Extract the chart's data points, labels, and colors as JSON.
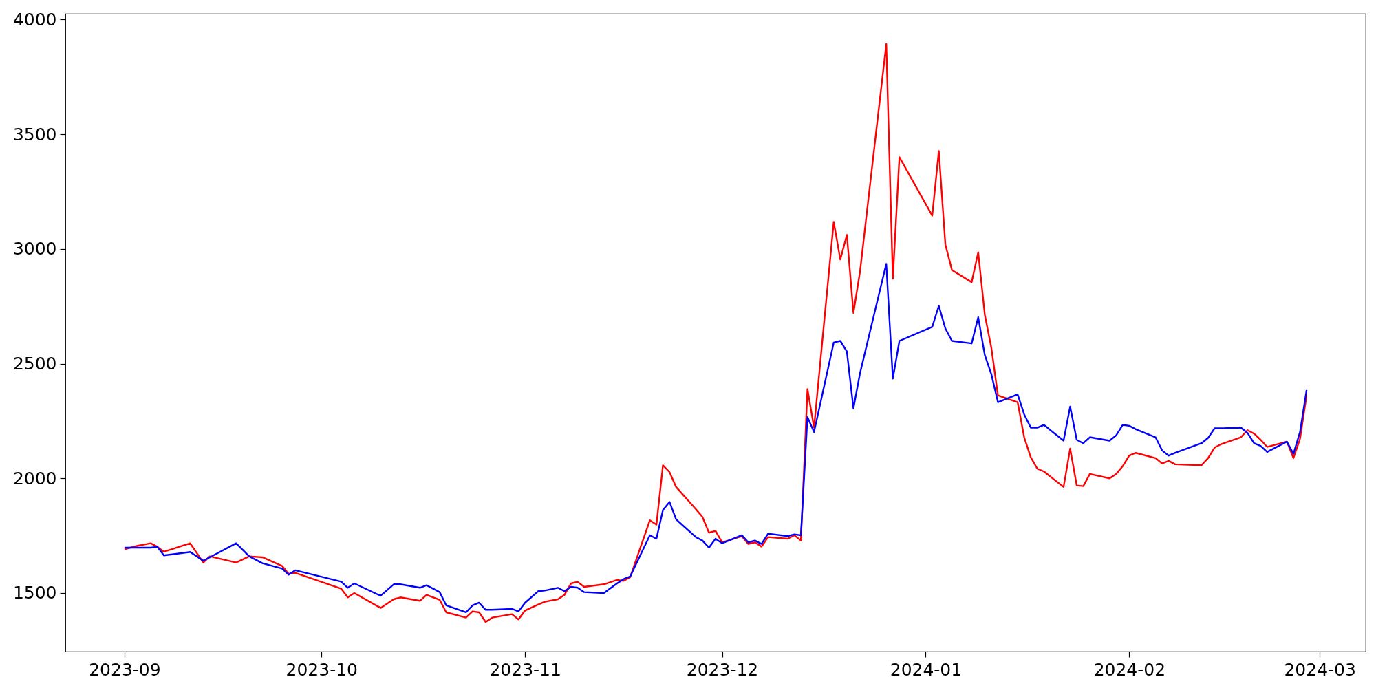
{
  "chart_data": {
    "type": "line",
    "x": [
      "2023-09-01",
      "2023-09-03",
      "2023-09-05",
      "2023-09-06",
      "2023-09-07",
      "2023-09-11",
      "2023-09-13",
      "2023-09-14",
      "2023-09-18",
      "2023-09-20",
      "2023-09-22",
      "2023-09-25",
      "2023-09-26",
      "2023-09-27",
      "2023-10-04",
      "2023-10-05",
      "2023-10-06",
      "2023-10-10",
      "2023-10-12",
      "2023-10-13",
      "2023-10-16",
      "2023-10-17",
      "2023-10-19",
      "2023-10-20",
      "2023-10-23",
      "2023-10-24",
      "2023-10-25",
      "2023-10-26",
      "2023-10-27",
      "2023-10-30",
      "2023-10-31",
      "2023-11-01",
      "2023-11-03",
      "2023-11-04",
      "2023-11-06",
      "2023-11-07",
      "2023-11-08",
      "2023-11-09",
      "2023-11-10",
      "2023-11-13",
      "2023-11-15",
      "2023-11-16",
      "2023-11-17",
      "2023-11-20",
      "2023-11-21",
      "2023-11-22",
      "2023-11-23",
      "2023-11-24",
      "2023-11-27",
      "2023-11-28",
      "2023-11-29",
      "2023-11-30",
      "2023-12-01",
      "2023-12-04",
      "2023-12-05",
      "2023-12-06",
      "2023-12-07",
      "2023-12-08",
      "2023-12-11",
      "2023-12-12",
      "2023-12-13",
      "2023-12-14",
      "2023-12-15",
      "2023-12-18",
      "2023-12-19",
      "2023-12-20",
      "2023-12-21",
      "2023-12-22",
      "2023-12-26",
      "2023-12-27",
      "2023-12-28",
      "2024-01-02",
      "2024-01-03",
      "2024-01-04",
      "2024-01-05",
      "2024-01-08",
      "2024-01-09",
      "2024-01-10",
      "2024-01-11",
      "2024-01-12",
      "2024-01-15",
      "2024-01-16",
      "2024-01-17",
      "2024-01-18",
      "2024-01-19",
      "2024-01-22",
      "2024-01-23",
      "2024-01-24",
      "2024-01-25",
      "2024-01-26",
      "2024-01-29",
      "2024-01-30",
      "2024-01-31",
      "2024-02-01",
      "2024-02-02",
      "2024-02-05",
      "2024-02-06",
      "2024-02-07",
      "2024-02-08",
      "2024-02-12",
      "2024-02-13",
      "2024-02-14",
      "2024-02-15",
      "2024-02-18",
      "2024-02-19",
      "2024-02-20",
      "2024-02-21",
      "2024-02-22",
      "2024-02-25",
      "2024-02-26",
      "2024-02-27",
      "2024-02-28"
    ],
    "series": [
      {
        "color": "#ff0000",
        "values": [
          1691,
          1706,
          1717,
          1702,
          1680,
          1717,
          1633,
          1660,
          1633,
          1660,
          1656,
          1618,
          1584,
          1588,
          1519,
          1481,
          1500,
          1435,
          1473,
          1481,
          1466,
          1492,
          1470,
          1416,
          1393,
          1420,
          1416,
          1374,
          1393,
          1408,
          1385,
          1424,
          1450,
          1462,
          1473,
          1492,
          1542,
          1549,
          1527,
          1538,
          1557,
          1553,
          1569,
          1817,
          1798,
          2057,
          2027,
          1962,
          1866,
          1832,
          1763,
          1771,
          1721,
          1748,
          1714,
          1721,
          1702,
          1744,
          1737,
          1752,
          1729,
          2389,
          2221,
          3118,
          2954,
          3061,
          2721,
          2901,
          3893,
          2870,
          3400,
          3145,
          3427,
          3019,
          2908,
          2855,
          2985,
          2714,
          2569,
          2362,
          2332,
          2179,
          2092,
          2042,
          2030,
          1962,
          2130,
          1969,
          1966,
          2019,
          2000,
          2019,
          2053,
          2099,
          2111,
          2088,
          2065,
          2076,
          2061,
          2057,
          2088,
          2134,
          2149,
          2179,
          2210,
          2195,
          2168,
          2137,
          2160,
          2088,
          2172,
          2362
        ]
      },
      {
        "color": "#0000ff",
        "values": [
          1698,
          1698,
          1698,
          1702,
          1664,
          1679,
          1641,
          1656,
          1717,
          1660,
          1630,
          1607,
          1580,
          1599,
          1550,
          1523,
          1542,
          1488,
          1538,
          1538,
          1523,
          1534,
          1504,
          1446,
          1416,
          1446,
          1458,
          1427,
          1427,
          1431,
          1420,
          1458,
          1508,
          1511,
          1523,
          1508,
          1527,
          1523,
          1504,
          1500,
          1542,
          1561,
          1572,
          1752,
          1737,
          1862,
          1897,
          1821,
          1744,
          1729,
          1698,
          1737,
          1717,
          1752,
          1721,
          1729,
          1714,
          1759,
          1748,
          1756,
          1752,
          2267,
          2202,
          2592,
          2599,
          2553,
          2305,
          2458,
          2935,
          2435,
          2599,
          2660,
          2752,
          2653,
          2599,
          2588,
          2702,
          2538,
          2454,
          2332,
          2366,
          2279,
          2221,
          2221,
          2233,
          2164,
          2313,
          2168,
          2153,
          2179,
          2164,
          2187,
          2233,
          2229,
          2214,
          2179,
          2122,
          2099,
          2111,
          2153,
          2176,
          2218,
          2218,
          2221,
          2198,
          2153,
          2141,
          2115,
          2160,
          2107,
          2202,
          2385
        ]
      }
    ],
    "xlim": [
      "2023-08-23",
      "2024-03-08"
    ],
    "xticks": [
      "2023-09",
      "2023-10",
      "2023-11",
      "2023-12",
      "2024-01",
      "2024-02",
      "2024-03"
    ],
    "ylim": [
      1245,
      4025
    ],
    "yticks": [
      1500,
      2000,
      2500,
      3000,
      3500,
      4000
    ],
    "grid": false,
    "legend": false
  }
}
